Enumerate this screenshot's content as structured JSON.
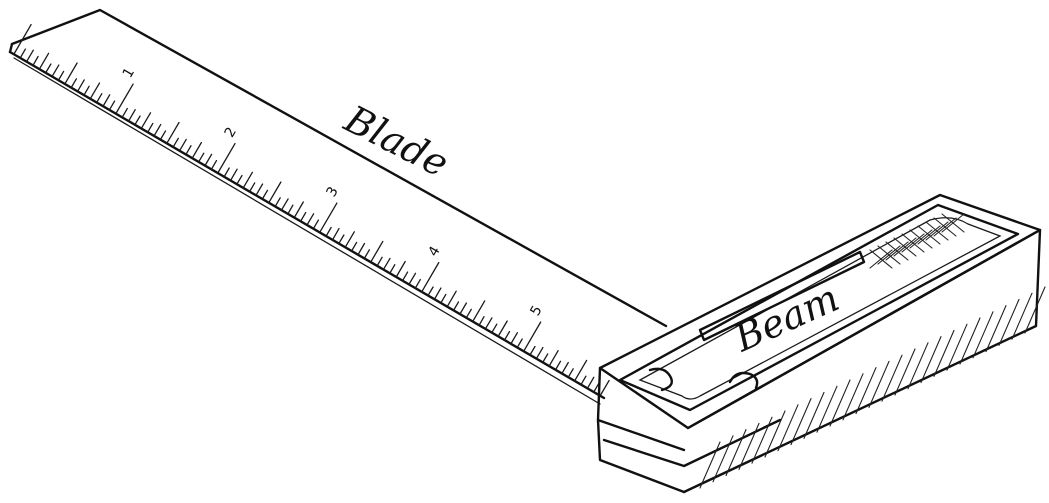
{
  "labels": {
    "blade": "Blade",
    "beam": "Beam"
  },
  "scale_numbers": [
    "1",
    "2",
    "3",
    "4",
    "5"
  ]
}
